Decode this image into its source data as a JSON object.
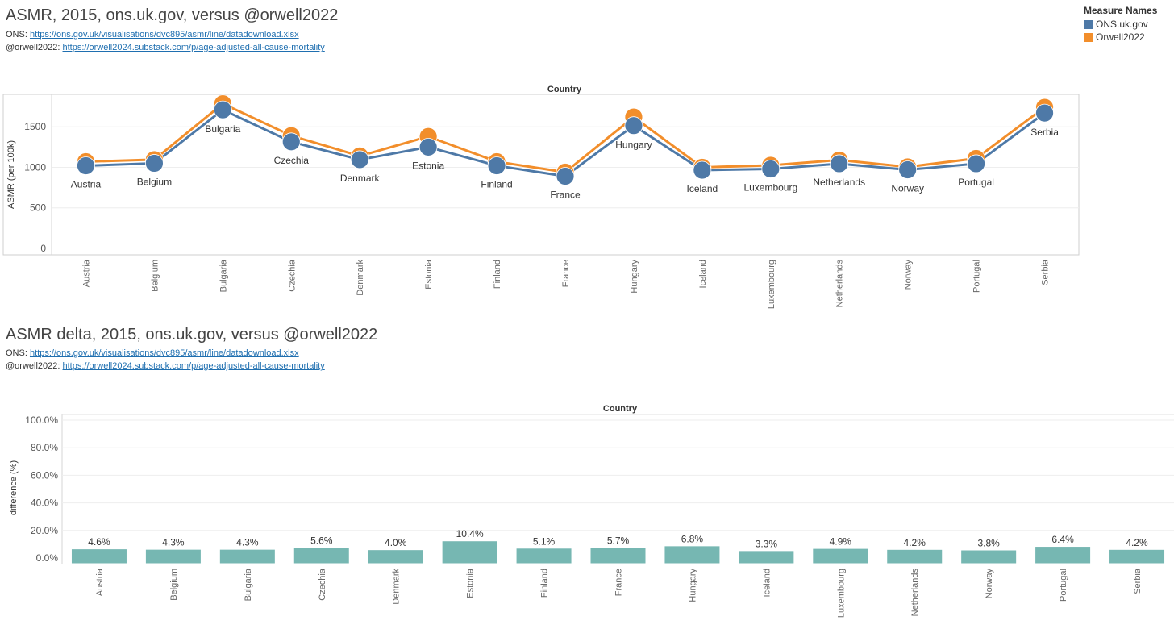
{
  "chart1": {
    "title": "ASMR, 2015, ons.uk.gov, versus @orwell2022",
    "ons_label": "ONS:",
    "ons_link": "https://ons.gov.uk/visualisations/dvc895/asmr/line/datadownload.xlsx",
    "orwell_label": "@orwell2022:",
    "orwell_link": "https://orwell2024.substack.com/p/age-adjusted-all-cause-mortality"
  },
  "chart2": {
    "title": "ASMR delta, 2015, ons.uk.gov, versus @orwell2022",
    "ons_label": "ONS:",
    "ons_link": "https://ons.gov.uk/visualisations/dvc895/asmr/line/datadownload.xlsx",
    "orwell_label": "@orwell2022:",
    "orwell_link": "https://orwell2024.substack.com/p/age-adjusted-all-cause-mortality"
  },
  "legend": {
    "title": "Measure Names",
    "items": [
      {
        "label": "ONS.uk.gov",
        "color": "#4e79a7"
      },
      {
        "label": "Orwell2022",
        "color": "#f28e2b"
      }
    ]
  },
  "chart_data": [
    {
      "type": "line",
      "title": "ASMR, 2015, ons.uk.gov, versus @orwell2022",
      "column_header": "Country",
      "ylabel": "ASMR (per 100k)",
      "ylim": [
        0,
        1900
      ],
      "yticks": [
        0,
        500,
        1000,
        1500
      ],
      "grid": true,
      "legend": "top-right",
      "categories": [
        "Austria",
        "Belgium",
        "Bulgaria",
        "Czechia",
        "Denmark",
        "Estonia",
        "Finland",
        "France",
        "Hungary",
        "Iceland",
        "Luxembourg",
        "Netherlands",
        "Norway",
        "Portugal",
        "Serbia"
      ],
      "series": [
        {
          "name": "Orwell2022",
          "color": "#f28e2b",
          "values": [
            1070,
            1095,
            1785,
            1390,
            1140,
            1380,
            1070,
            940,
            1620,
            1000,
            1025,
            1090,
            1005,
            1110,
            1740
          ]
        },
        {
          "name": "ONS.uk.gov",
          "color": "#4e79a7",
          "values": [
            1020,
            1050,
            1710,
            1315,
            1095,
            1250,
            1020,
            890,
            1515,
            965,
            980,
            1045,
            970,
            1045,
            1670
          ]
        }
      ]
    },
    {
      "type": "bar",
      "title": "ASMR delta, 2015, ons.uk.gov, versus @orwell2022",
      "column_header": "Country",
      "ylabel": "difference (%)",
      "ylim": [
        0,
        100
      ],
      "yticks": [
        "0.0%",
        "20.0%",
        "40.0%",
        "60.0%",
        "80.0%",
        "100.0%"
      ],
      "grid": true,
      "color": "#76b7b2",
      "categories": [
        "Austria",
        "Belgium",
        "Bulgaria",
        "Czechia",
        "Denmark",
        "Estonia",
        "Finland",
        "France",
        "Hungary",
        "Iceland",
        "Luxembourg",
        "Netherlands",
        "Norway",
        "Portugal",
        "Serbia"
      ],
      "values": [
        4.6,
        4.3,
        4.3,
        5.6,
        4.0,
        10.4,
        5.1,
        5.7,
        6.8,
        3.3,
        4.9,
        4.2,
        3.8,
        6.4,
        4.2
      ],
      "labels": [
        "4.6%",
        "4.3%",
        "4.3%",
        "5.6%",
        "4.0%",
        "10.4%",
        "5.1%",
        "5.7%",
        "6.8%",
        "3.3%",
        "4.9%",
        "4.2%",
        "3.8%",
        "6.4%",
        "4.2%"
      ]
    }
  ]
}
